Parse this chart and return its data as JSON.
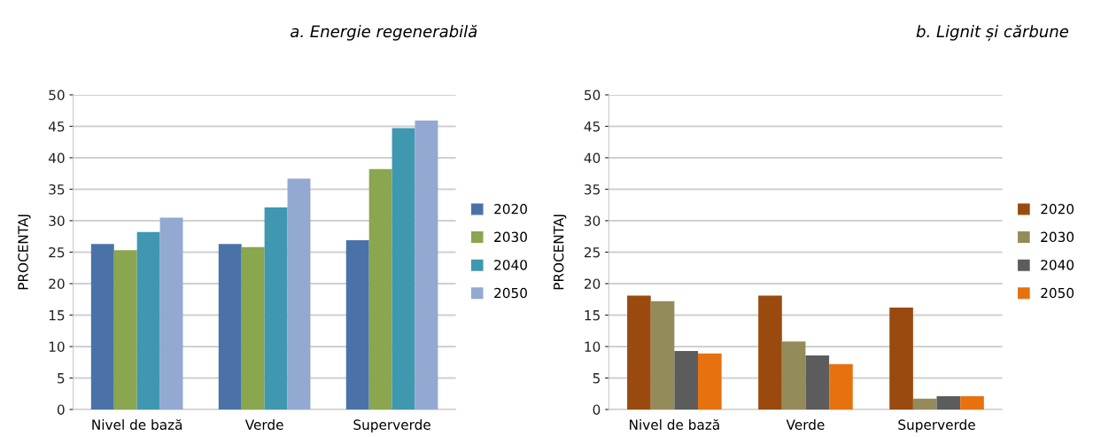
{
  "chart_data": [
    {
      "type": "bar",
      "title": "a. Energie regenerabilă",
      "ylabel": "PROCENTAJ",
      "categories": [
        "Nivel de bază",
        "Verde",
        "Superverde"
      ],
      "series": [
        {
          "name": "2020",
          "color": "#4a72a8",
          "values": [
            26.3,
            26.3,
            26.9
          ]
        },
        {
          "name": "2030",
          "color": "#8aa64e",
          "values": [
            25.3,
            25.8,
            38.2
          ]
        },
        {
          "name": "2040",
          "color": "#3f97b0",
          "values": [
            28.2,
            32.1,
            44.7
          ]
        },
        {
          "name": "2050",
          "color": "#93a9d2",
          "values": [
            30.5,
            36.7,
            45.9
          ]
        }
      ],
      "ylim": [
        0,
        50
      ],
      "yticks": [
        0,
        5,
        10,
        15,
        20,
        25,
        30,
        35,
        40,
        45,
        50
      ],
      "grid": "y",
      "legend": "right"
    },
    {
      "type": "bar",
      "title": "b. Lignit și cărbune",
      "ylabel": "PROCENTAJ",
      "categories": [
        "Nivel de bază",
        "Verde",
        "Superverde"
      ],
      "series": [
        {
          "name": "2020",
          "color": "#9a4a0e",
          "values": [
            18.1,
            18.1,
            16.2
          ]
        },
        {
          "name": "2030",
          "color": "#948b5a",
          "values": [
            17.2,
            10.8,
            1.7
          ]
        },
        {
          "name": "2040",
          "color": "#5c5c5c",
          "values": [
            9.3,
            8.6,
            2.1
          ]
        },
        {
          "name": "2050",
          "color": "#e8710f",
          "values": [
            8.9,
            7.2,
            2.1
          ]
        }
      ],
      "ylim": [
        0,
        50
      ],
      "yticks": [
        0,
        5,
        10,
        15,
        20,
        25,
        30,
        35,
        40,
        45,
        50
      ],
      "grid": "y",
      "legend": "right"
    }
  ]
}
